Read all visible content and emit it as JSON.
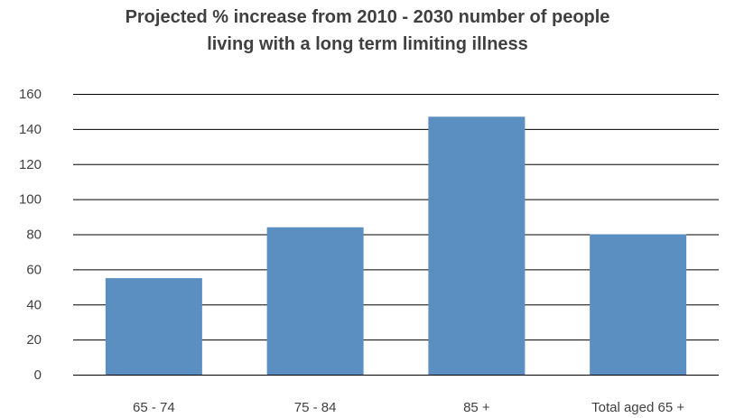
{
  "chart_data": {
    "type": "bar",
    "title_line1": "Projected % increase from 2010 - 2030 number of people",
    "title_line2": "living with a long term limiting illness",
    "categories": [
      "65 - 74",
      "75 - 84",
      "85 +",
      "Total aged 65 +"
    ],
    "values": [
      55,
      84,
      147,
      80
    ],
    "ylim": [
      0,
      160
    ],
    "yticks": [
      "0",
      "20",
      "40",
      "60",
      "80",
      "100",
      "120",
      "140",
      "160"
    ],
    "grid": true,
    "bar_color": "#5b8fc2",
    "grid_color": "#000000",
    "text_color": "#404040"
  }
}
